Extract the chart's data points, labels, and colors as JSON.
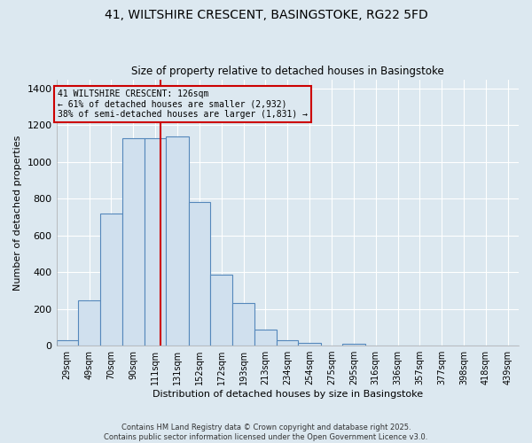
{
  "title_line1": "41, WILTSHIRE CRESCENT, BASINGSTOKE, RG22 5FD",
  "title_line2": "Size of property relative to detached houses in Basingstoke",
  "xlabel": "Distribution of detached houses by size in Basingstoke",
  "ylabel": "Number of detached properties",
  "bar_labels": [
    "29sqm",
    "49sqm",
    "70sqm",
    "90sqm",
    "111sqm",
    "131sqm",
    "152sqm",
    "172sqm",
    "193sqm",
    "213sqm",
    "234sqm",
    "254sqm",
    "275sqm",
    "295sqm",
    "316sqm",
    "336sqm",
    "357sqm",
    "377sqm",
    "398sqm",
    "418sqm",
    "439sqm"
  ],
  "bar_left_edges": [
    29,
    49,
    70,
    90,
    111,
    131,
    152,
    172,
    193,
    213,
    234,
    254,
    275,
    295,
    316,
    336,
    357,
    377,
    398,
    418,
    439
  ],
  "bar_right_edges": [
    49,
    70,
    90,
    111,
    131,
    152,
    172,
    193,
    213,
    234,
    254,
    275,
    295,
    316,
    336,
    357,
    377,
    398,
    418,
    439,
    459
  ],
  "bar_heights": [
    30,
    248,
    720,
    1130,
    1130,
    1140,
    780,
    385,
    232,
    88,
    27,
    16,
    0,
    12,
    0,
    0,
    0,
    0,
    0,
    0,
    0
  ],
  "bar_color": "#d0e0ee",
  "bar_edge_color": "#5588bb",
  "property_value": 126,
  "vline_color": "#cc0000",
  "annotation_box_edge": "#cc0000",
  "annotation_text_line1": "41 WILTSHIRE CRESCENT: 126sqm",
  "annotation_text_line2": "← 61% of detached houses are smaller (2,932)",
  "annotation_text_line3": "38% of semi-detached houses are larger (1,831) →",
  "ylim": [
    0,
    1450
  ],
  "yticks": [
    0,
    200,
    400,
    600,
    800,
    1000,
    1200,
    1400
  ],
  "bg_color": "#dce8f0",
  "grid_color": "#ffffff",
  "footer_line1": "Contains HM Land Registry data © Crown copyright and database right 2025.",
  "footer_line2": "Contains public sector information licensed under the Open Government Licence v3.0."
}
